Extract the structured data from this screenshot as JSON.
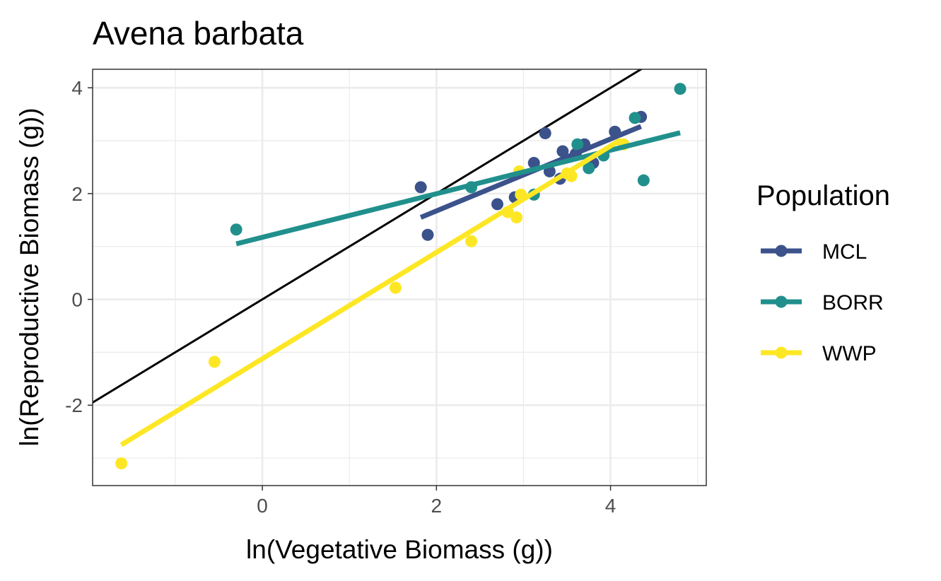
{
  "chart_data": {
    "type": "scatter",
    "title": "Avena barbata",
    "xlabel": "ln(Vegetative Biomass (g))",
    "ylabel": "ln(Reproductive Biomass (g))",
    "xlim": [
      -1.95,
      5.1
    ],
    "ylim": [
      -3.52,
      4.35
    ],
    "x_ticks": [
      0,
      2,
      4
    ],
    "y_ticks": [
      -2,
      0,
      2,
      4
    ],
    "x_tick_labels": [
      "0",
      "2",
      "4"
    ],
    "y_tick_labels": [
      "-2",
      "0",
      "2",
      "4"
    ],
    "grid": true,
    "legend": {
      "title": "Population",
      "position": "right"
    },
    "reference_line": {
      "slope": 1,
      "intercept": 0,
      "color": "#000000"
    },
    "series": [
      {
        "name": "MCL",
        "color": "#3B528B",
        "points": [
          [
            1.82,
            2.12
          ],
          [
            1.9,
            1.22
          ],
          [
            2.7,
            1.8
          ],
          [
            2.9,
            1.93
          ],
          [
            3.12,
            2.58
          ],
          [
            3.25,
            3.14
          ],
          [
            3.3,
            2.42
          ],
          [
            3.42,
            2.28
          ],
          [
            3.45,
            2.8
          ],
          [
            3.6,
            2.75
          ],
          [
            3.7,
            2.93
          ],
          [
            3.8,
            2.58
          ],
          [
            4.05,
            3.17
          ],
          [
            4.35,
            3.45
          ]
        ],
        "fit": {
          "x": [
            1.82,
            4.35
          ],
          "y": [
            1.55,
            3.27
          ]
        }
      },
      {
        "name": "BORR",
        "color": "#21908C",
        "points": [
          [
            -0.3,
            1.32
          ],
          [
            2.4,
            2.12
          ],
          [
            3.12,
            1.98
          ],
          [
            3.62,
            2.93
          ],
          [
            3.75,
            2.48
          ],
          [
            3.92,
            2.72
          ],
          [
            4.28,
            3.43
          ],
          [
            4.38,
            2.25
          ],
          [
            4.8,
            3.98
          ]
        ],
        "fit": {
          "x": [
            -0.3,
            4.8
          ],
          "y": [
            1.05,
            3.15
          ]
        }
      },
      {
        "name": "WWP",
        "color": "#FDE725",
        "points": [
          [
            -1.62,
            -3.1
          ],
          [
            -0.55,
            -1.18
          ],
          [
            1.53,
            0.22
          ],
          [
            2.4,
            1.1
          ],
          [
            2.82,
            1.65
          ],
          [
            2.92,
            1.55
          ],
          [
            2.95,
            2.42
          ],
          [
            2.97,
            1.98
          ],
          [
            3.5,
            2.38
          ],
          [
            3.55,
            2.33
          ],
          [
            4.15,
            2.93
          ]
        ],
        "fit": {
          "x": [
            -1.62,
            4.12
          ],
          "y": [
            -2.75,
            3.02
          ]
        }
      }
    ]
  }
}
